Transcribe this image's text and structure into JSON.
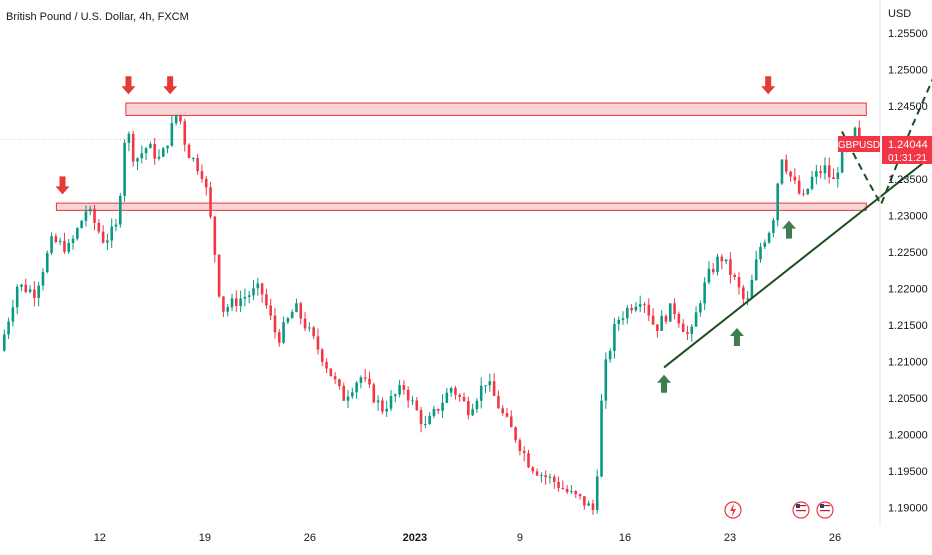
{
  "header": {
    "title": "British Pound / U.S. Dollar, 4h, FXCM"
  },
  "colors": {
    "up": "#089981",
    "down": "#f23645",
    "zone_fill": "#f4b7bb",
    "zone_stroke": "#e53935",
    "marker_red": "#e53935",
    "marker_green": "#3e7d4f",
    "trend": "#1d4d1f",
    "axis_text": "#131722"
  },
  "price_badge": {
    "symbol": "GBPUSD",
    "price": "1.24044",
    "countdown": "01:31:21"
  },
  "events": {
    "icons": [
      "lightning-event-icon",
      "us-flag-event-icon",
      "us-flag-event-icon"
    ]
  },
  "chart_data": {
    "type": "candlestick",
    "title": "British Pound / U.S. Dollar, 4h, FXCM",
    "currency_label": "USD",
    "ylim": [
      1.1875,
      1.2595
    ],
    "y_ticks": [
      "1.25500",
      "1.25000",
      "1.24500",
      "1.24000",
      "1.23500",
      "1.23000",
      "1.22500",
      "1.22000",
      "1.21500",
      "1.21000",
      "1.20500",
      "1.20000",
      "1.19500",
      "1.19000"
    ],
    "x_ticks": [
      "12",
      "19",
      "26",
      "2023",
      "9",
      "16",
      "23",
      "26"
    ],
    "x_tick_positions": [
      11.5,
      23.6,
      35.7,
      47.8,
      59.9,
      72.0,
      84.1,
      96.2
    ],
    "x_range": [
      0,
      100
    ],
    "current_price": 1.24044,
    "anchors": [
      [
        0,
        1.2115
      ],
      [
        2,
        1.2205
      ],
      [
        4,
        1.2195
      ],
      [
        6,
        1.2265
      ],
      [
        8,
        1.2255
      ],
      [
        10,
        1.231
      ],
      [
        12,
        1.2265
      ],
      [
        13.5,
        1.2285
      ],
      [
        14.5,
        1.2425
      ],
      [
        15.5,
        1.2375
      ],
      [
        17,
        1.2395
      ],
      [
        18.5,
        1.2375
      ],
      [
        20.5,
        1.2445
      ],
      [
        21.5,
        1.239
      ],
      [
        23.5,
        1.2355
      ],
      [
        24.5,
        1.2275
      ],
      [
        25.5,
        1.217
      ],
      [
        27.5,
        1.2185
      ],
      [
        30,
        1.22
      ],
      [
        32,
        1.213
      ],
      [
        34,
        1.2175
      ],
      [
        37,
        1.211
      ],
      [
        39.5,
        1.205
      ],
      [
        41.5,
        1.208
      ],
      [
        44,
        1.2035
      ],
      [
        46.5,
        1.2065
      ],
      [
        49,
        1.201
      ],
      [
        52,
        1.2065
      ],
      [
        54,
        1.2035
      ],
      [
        56,
        1.2075
      ],
      [
        58,
        1.2025
      ],
      [
        59.5,
        1.1995
      ],
      [
        61,
        1.196
      ],
      [
        62.5,
        1.1945
      ],
      [
        64,
        1.1935
      ],
      [
        65.5,
        1.192
      ],
      [
        67,
        1.191
      ],
      [
        68.5,
        1.1895
      ],
      [
        69.5,
        1.208
      ],
      [
        71,
        1.2155
      ],
      [
        72.5,
        1.2175
      ],
      [
        74,
        1.219
      ],
      [
        75.5,
        1.2145
      ],
      [
        77.5,
        1.2175
      ],
      [
        79.5,
        1.213
      ],
      [
        80.5,
        1.218
      ],
      [
        81.5,
        1.2215
      ],
      [
        83,
        1.2245
      ],
      [
        84.5,
        1.2215
      ],
      [
        86,
        1.2175
      ],
      [
        87.5,
        1.2255
      ],
      [
        89,
        1.229
      ],
      [
        90,
        1.2385
      ],
      [
        91,
        1.2355
      ],
      [
        92.5,
        1.232
      ],
      [
        93.5,
        1.235
      ],
      [
        95,
        1.2365
      ],
      [
        96,
        1.2345
      ],
      [
        97,
        1.2385
      ],
      [
        98,
        1.24
      ],
      [
        98.5,
        1.2415
      ],
      [
        99,
        1.2395
      ]
    ],
    "zones": [
      {
        "name": "upper-resistance",
        "x": [
          14.5,
          99.8
        ],
        "y": [
          1.2437,
          1.2454
        ]
      },
      {
        "name": "lower-support",
        "x": [
          6.5,
          99.8
        ],
        "y": [
          1.2307,
          1.2317
        ]
      }
    ],
    "down_arrows": [
      {
        "x": 7.2,
        "y": 1.2329
      },
      {
        "x": 14.8,
        "y": 1.2466
      },
      {
        "x": 19.6,
        "y": 1.2466
      },
      {
        "x": 88.5,
        "y": 1.2466
      }
    ],
    "up_arrows": [
      {
        "x": 76.5,
        "y": 1.2082
      },
      {
        "x": 84.9,
        "y": 1.2146
      },
      {
        "x": 90.9,
        "y": 1.2293
      }
    ],
    "trendline": {
      "from": {
        "x": 76.5,
        "y": 1.2092
      },
      "to": {
        "x": 107,
        "y": 1.2378
      }
    },
    "projection": [
      {
        "x": 97.0,
        "y": 1.2415
      },
      {
        "x": 99.5,
        "y": 1.2358
      },
      {
        "x": 101.5,
        "y": 1.2315
      },
      {
        "x": 105.0,
        "y": 1.242
      },
      {
        "x": 108.5,
        "y": 1.2515
      }
    ]
  }
}
